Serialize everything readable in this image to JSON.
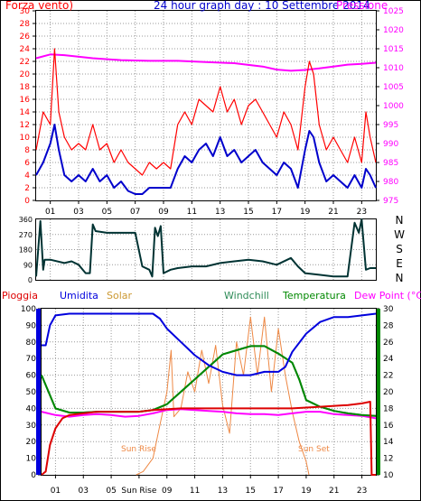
{
  "title": "24 hour graph day : 10 Settembre 2014",
  "colors": {
    "wind": "#ff0000",
    "wind_avg": "#0000cc",
    "pressure": "#ff00ff",
    "direction": "#003333",
    "rain": "#dd0000",
    "humidity": "#0000dd",
    "solar": "#ee8844",
    "windchill": "#2e8b57",
    "temperature": "#008800",
    "dew_point": "#ff00ff"
  },
  "panel1": {
    "left_title": "Forza vento)",
    "right_title": "Pressione",
    "left_ticks": [
      "30",
      "28",
      "26",
      "24",
      "22",
      "20",
      "18",
      "16",
      "14",
      "12",
      "10",
      "8",
      "6",
      "4",
      "2",
      "0"
    ],
    "right_ticks": [
      "1025",
      "1020",
      "1015",
      "1010",
      "1005",
      "1000",
      "995",
      "990",
      "985",
      "980",
      "975"
    ],
    "x_ticks": [
      "01",
      "03",
      "05",
      "07",
      "09",
      "11",
      "13",
      "15",
      "17",
      "19",
      "21",
      "23"
    ]
  },
  "panel2": {
    "left_ticks": [
      "360",
      "270",
      "180",
      "90",
      "0"
    ],
    "compass": [
      "N",
      "W",
      "S",
      "E",
      "N"
    ]
  },
  "panel3": {
    "headers": {
      "rain": "Pioggia",
      "humidity": "Umidita",
      "solar": "Solar",
      "windchill": "Windchill",
      "temperature": "Temperatura",
      "dew_point": "Dew Point (°C)"
    },
    "left_ticks": [
      "100",
      "90",
      "80",
      "70",
      "60",
      "50",
      "40",
      "30",
      "20",
      "10",
      "0"
    ],
    "right_ticks": [
      "30",
      "28",
      "26",
      "24",
      "22",
      "20",
      "18",
      "16",
      "14",
      "12",
      "10"
    ],
    "x_ticks": [
      "01",
      "03",
      "05",
      "Sun Rise",
      "09",
      "11",
      "13",
      "15",
      "17",
      "19",
      "21",
      "23"
    ],
    "sunrise_label": "Sun Rise",
    "sunset_label": "Sun Set"
  },
  "chart_data": [
    {
      "type": "line",
      "title": "24 hour graph day : 10 Settembre 2014",
      "x_ticks": [
        "01",
        "03",
        "05",
        "07",
        "09",
        "11",
        "13",
        "15",
        "17",
        "19",
        "21",
        "23"
      ],
      "x_range": [
        0,
        24
      ],
      "y_left": {
        "label": "Forza vento)",
        "range": [
          0,
          30
        ]
      },
      "y_right": {
        "label": "Pressione",
        "range": [
          975,
          1025
        ]
      },
      "series": [
        {
          "name": "wind",
          "axis": "left",
          "color": "#ff0000",
          "x": [
            0,
            0.5,
            1,
            1.3,
            1.6,
            2,
            2.5,
            3,
            3.5,
            4,
            4.5,
            5,
            5.5,
            6,
            6.5,
            7,
            7.5,
            8,
            8.5,
            9,
            9.5,
            10,
            10.5,
            11,
            11.5,
            12,
            12.5,
            13,
            13.5,
            14,
            14.5,
            15,
            15.5,
            16,
            16.5,
            17,
            17.5,
            18,
            18.5,
            19,
            19.3,
            19.6,
            20,
            20.5,
            21,
            21.5,
            22,
            22.5,
            23,
            23.3,
            23.6,
            24
          ],
          "y": [
            8,
            14,
            12,
            24,
            14,
            10,
            8,
            9,
            8,
            12,
            8,
            9,
            6,
            8,
            6,
            5,
            4,
            6,
            5,
            6,
            5,
            12,
            14,
            12,
            16,
            15,
            14,
            18,
            14,
            16,
            12,
            15,
            16,
            14,
            12,
            10,
            14,
            12,
            8,
            18,
            22,
            20,
            12,
            8,
            10,
            8,
            6,
            10,
            6,
            14,
            10,
            6
          ]
        },
        {
          "name": "wind_avg",
          "axis": "left",
          "color": "#0000cc",
          "x": [
            0,
            0.5,
            1,
            1.3,
            1.6,
            2,
            2.5,
            3,
            3.5,
            4,
            4.5,
            5,
            5.5,
            6,
            6.5,
            7,
            7.5,
            8,
            8.5,
            9,
            9.5,
            10,
            10.5,
            11,
            11.5,
            12,
            12.5,
            13,
            13.5,
            14,
            14.5,
            15,
            15.5,
            16,
            16.5,
            17,
            17.5,
            18,
            18.5,
            19,
            19.3,
            19.6,
            20,
            20.5,
            21,
            21.5,
            22,
            22.5,
            23,
            23.3,
            23.6,
            24
          ],
          "y": [
            4,
            6,
            9,
            12,
            8,
            4,
            3,
            4,
            3,
            5,
            3,
            4,
            2,
            3,
            1.5,
            1,
            1,
            2,
            2,
            2,
            2,
            5,
            7,
            6,
            8,
            9,
            7,
            10,
            7,
            8,
            6,
            7,
            8,
            6,
            5,
            4,
            6,
            5,
            2,
            8,
            11,
            10,
            6,
            3,
            4,
            3,
            2,
            4,
            2,
            5,
            4,
            2
          ]
        },
        {
          "name": "pressure",
          "axis": "right",
          "color": "#ff00ff",
          "x": [
            0,
            1,
            2,
            4,
            6,
            8,
            10,
            12,
            14,
            16,
            17,
            18,
            19,
            20,
            21,
            22,
            23,
            24
          ],
          "y": [
            1012.5,
            1013.5,
            1013.3,
            1012.5,
            1012,
            1011.8,
            1011.8,
            1011.5,
            1011.2,
            1010.3,
            1009.5,
            1009.2,
            1009.4,
            1009.8,
            1010.3,
            1010.8,
            1011.0,
            1011.3
          ]
        }
      ]
    },
    {
      "type": "line",
      "title": "",
      "x_range": [
        0,
        24
      ],
      "y_left": {
        "label": "",
        "range": [
          0,
          360
        ]
      },
      "series": [
        {
          "name": "wind_direction",
          "color": "#003333",
          "x": [
            0,
            0.3,
            0.5,
            0.6,
            1,
            2,
            2.5,
            3,
            3.5,
            3.8,
            4,
            4.2,
            5,
            6,
            7,
            7.5,
            8,
            8.2,
            8.4,
            8.6,
            8.8,
            9,
            9.5,
            10,
            11,
            12,
            13,
            14,
            15,
            16,
            17,
            18,
            18.5,
            19,
            20,
            21,
            22,
            22.5,
            22.8,
            23,
            23.3,
            23.6,
            24
          ],
          "y": [
            20,
            350,
            60,
            120,
            120,
            100,
            110,
            90,
            40,
            40,
            330,
            290,
            280,
            280,
            280,
            80,
            60,
            20,
            310,
            260,
            320,
            40,
            60,
            70,
            80,
            80,
            100,
            110,
            120,
            110,
            90,
            130,
            80,
            40,
            30,
            20,
            20,
            340,
            280,
            360,
            60,
            70,
            70
          ]
        }
      ]
    },
    {
      "type": "line",
      "title": "",
      "x_ticks": [
        "01",
        "03",
        "05",
        "Sun Rise",
        "09",
        "11",
        "13",
        "15",
        "17",
        "19",
        "21",
        "23"
      ],
      "x_range": [
        0,
        24
      ],
      "y_left": {
        "label": "",
        "range": [
          0,
          100
        ]
      },
      "y_right": {
        "label": "Dew Point (°C)",
        "range": [
          10,
          30
        ]
      },
      "series": [
        {
          "name": "Pioggia",
          "axis": "left",
          "color": "#dd0000",
          "x": [
            0,
            0.3,
            0.6,
            1,
            1.5,
            2,
            3,
            4,
            5,
            6,
            7,
            8,
            10,
            12,
            14,
            16,
            18,
            20,
            22,
            23,
            23.6,
            23.7,
            24
          ],
          "y": [
            0,
            2,
            18,
            28,
            34,
            36,
            37,
            38,
            38,
            38,
            38,
            39,
            40,
            40,
            40,
            40,
            40,
            41,
            42,
            43,
            44,
            0,
            0
          ]
        },
        {
          "name": "Umidita",
          "axis": "left",
          "color": "#0000dd",
          "x": [
            0,
            0.3,
            0.6,
            1,
            2,
            3,
            4,
            5,
            6,
            7,
            8,
            8.5,
            9,
            10,
            11,
            12,
            13,
            14,
            15,
            16,
            17,
            17.5,
            18,
            19,
            20,
            21,
            22,
            23,
            24
          ],
          "y": [
            78,
            78,
            90,
            96,
            97,
            97,
            97,
            97,
            97,
            97,
            97,
            94,
            88,
            80,
            72,
            66,
            62,
            60,
            60,
            62,
            62,
            65,
            74,
            85,
            92,
            95,
            95,
            96,
            97
          ]
        },
        {
          "name": "Solar",
          "axis": "left",
          "color": "#ee8844",
          "x": [
            6.8,
            7.3,
            8,
            8.5,
            9,
            9.3,
            9.5,
            10,
            10.5,
            11,
            11.5,
            12,
            12.5,
            13,
            13.5,
            14,
            14.5,
            15,
            15.5,
            16,
            16.5,
            17,
            17.5,
            18,
            18.5,
            19,
            19.2
          ],
          "y": [
            0,
            2,
            10,
            30,
            50,
            75,
            35,
            40,
            62,
            50,
            75,
            55,
            78,
            42,
            25,
            80,
            60,
            95,
            60,
            95,
            50,
            88,
            60,
            38,
            20,
            8,
            0
          ]
        },
        {
          "name": "Windchill",
          "axis": "right",
          "color": "#2e8b57",
          "x": [
            0,
            0.5,
            1,
            2,
            3,
            4,
            5,
            6,
            7,
            8,
            9,
            10,
            11,
            12,
            13,
            14,
            15,
            16,
            17,
            18,
            18.5,
            19,
            20,
            21,
            22,
            23,
            24
          ],
          "y": [
            22,
            20,
            18,
            17.5,
            17.5,
            17.6,
            17.6,
            17.6,
            17.6,
            17.8,
            18.5,
            20,
            21.5,
            23,
            24.5,
            25,
            25.5,
            25.5,
            24.6,
            23.5,
            21.5,
            19,
            18.2,
            17.7,
            17.4,
            17.2,
            17.1
          ]
        },
        {
          "name": "Temperatura",
          "axis": "right",
          "color": "#008800",
          "x": [
            0,
            0.5,
            1,
            2,
            3,
            4,
            5,
            6,
            7,
            8,
            9,
            10,
            11,
            12,
            13,
            14,
            15,
            16,
            17,
            18,
            18.5,
            19,
            20,
            21,
            22,
            23,
            24
          ],
          "y": [
            22,
            20,
            18,
            17.5,
            17.5,
            17.6,
            17.6,
            17.6,
            17.6,
            17.8,
            18.5,
            20,
            21.5,
            23,
            24.5,
            25,
            25.5,
            25.5,
            24.6,
            23.5,
            21.5,
            19,
            18.2,
            17.7,
            17.4,
            17.2,
            17.1
          ]
        },
        {
          "name": "Dew Point (°C)",
          "axis": "right",
          "color": "#ff00ff",
          "x": [
            0,
            1,
            2,
            3,
            4,
            5,
            6,
            7,
            8,
            9,
            10,
            11,
            12,
            13,
            14,
            15,
            16,
            17,
            18,
            19,
            20,
            21,
            22,
            23,
            24
          ],
          "y": [
            17.6,
            17.2,
            17.0,
            17.2,
            17.3,
            17.2,
            17.0,
            17.1,
            17.4,
            17.8,
            17.9,
            17.8,
            17.7,
            17.6,
            17.4,
            17.3,
            17.3,
            17.2,
            17.4,
            17.6,
            17.6,
            17.3,
            17.2,
            17.1,
            16.8
          ]
        }
      ]
    }
  ]
}
